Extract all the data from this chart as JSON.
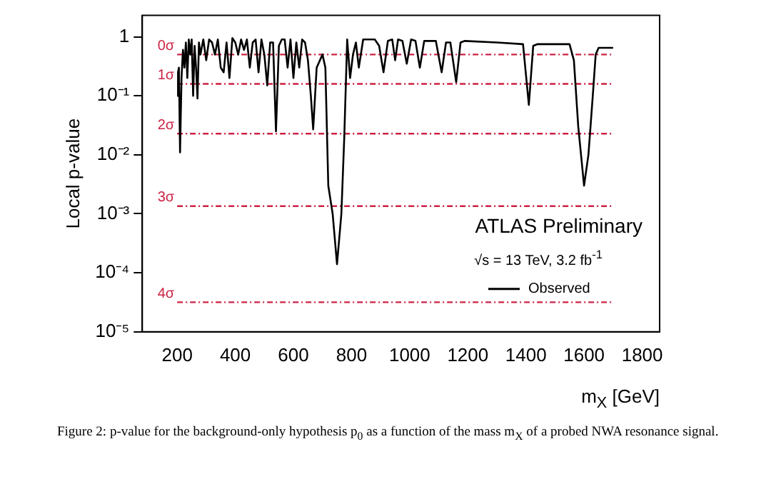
{
  "chart_data": {
    "type": "line",
    "ylabel": "Local p-value",
    "xlabel": "m$_{X}$ [GeV]",
    "annotations": [
      "ATLAS Preliminary",
      "√s = 13 TeV, 3.2 fb$^{-1}$",
      "Figure 2: p-value for the background-only hypothesis p$_{0}$ as a function of the mass m$_{X}$ of a probed NWA resonance signal."
    ],
    "x": [
      200,
      203,
      206,
      210,
      215,
      220,
      225,
      230,
      235,
      240,
      245,
      250,
      255,
      260,
      265,
      270,
      275,
      280,
      290,
      300,
      310,
      320,
      330,
      340,
      350,
      360,
      370,
      380,
      390,
      400,
      410,
      420,
      430,
      440,
      450,
      460,
      470,
      480,
      490,
      500,
      510,
      520,
      530,
      540,
      550,
      560,
      570,
      580,
      590,
      600,
      610,
      620,
      630,
      640,
      650,
      660,
      668,
      680,
      700,
      710,
      720,
      735,
      750,
      765,
      775,
      785,
      795,
      805,
      815,
      825,
      840,
      860,
      880,
      895,
      910,
      925,
      940,
      950,
      960,
      975,
      990,
      1005,
      1020,
      1035,
      1050,
      1070,
      1090,
      1110,
      1125,
      1140,
      1160,
      1175,
      1190,
      1300,
      1390,
      1410,
      1425,
      1440,
      1550,
      1565,
      1580,
      1600,
      1615,
      1630,
      1640,
      1650,
      1700
    ],
    "series": [
      {
        "name": "Observed",
        "color": "#000000",
        "values": [
          0.1,
          0.25,
          0.3,
          0.011,
          0.2,
          0.6,
          0.3,
          0.8,
          0.2,
          0.9,
          0.5,
          0.9,
          0.1,
          0.7,
          0.3,
          0.09,
          0.8,
          0.5,
          0.9,
          0.4,
          0.9,
          0.8,
          0.5,
          0.9,
          0.3,
          0.25,
          0.8,
          0.2,
          0.95,
          0.8,
          0.5,
          0.9,
          0.6,
          0.9,
          0.3,
          0.8,
          0.9,
          0.25,
          0.9,
          0.5,
          0.15,
          0.8,
          0.8,
          0.025,
          0.7,
          0.9,
          0.9,
          0.3,
          0.9,
          0.2,
          0.8,
          0.3,
          0.9,
          0.8,
          0.4,
          0.1,
          0.027,
          0.3,
          0.5,
          0.3,
          0.003,
          0.001,
          0.00014,
          0.001,
          0.02,
          0.9,
          0.2,
          0.5,
          0.8,
          0.3,
          0.9,
          0.9,
          0.9,
          0.7,
          0.25,
          0.85,
          0.9,
          0.4,
          0.9,
          0.85,
          0.35,
          0.9,
          0.85,
          0.3,
          0.85,
          0.85,
          0.85,
          0.25,
          0.8,
          0.8,
          0.17,
          0.8,
          0.85,
          0.8,
          0.75,
          0.07,
          0.7,
          0.75,
          0.75,
          0.4,
          0.03,
          0.003,
          0.01,
          0.1,
          0.5,
          0.65,
          0.65
        ]
      }
    ],
    "xlim": [
      80,
      1860
    ],
    "xticks": [
      200,
      400,
      600,
      800,
      1000,
      1200,
      1400,
      1600,
      1800
    ],
    "ylim": [
      1e-05,
      2.3
    ],
    "log": "y",
    "yticks": [
      {
        "value": 1e-05,
        "label": "10⁻⁵"
      },
      {
        "value": 0.0001,
        "label": "10⁻⁴"
      },
      {
        "value": 0.001,
        "label": "10⁻³"
      },
      {
        "value": 0.01,
        "label": "10⁻²"
      },
      {
        "value": 0.1,
        "label": "10⁻¹"
      },
      1
    ],
    "ref_lines": [
      {
        "axis": "y",
        "value": 0.5,
        "label": "0σ",
        "color": "#cc2244",
        "line_style": "dotted"
      },
      {
        "axis": "y",
        "value": 0.159,
        "label": "1σ",
        "color": "#cc2244",
        "line_style": "dotted"
      },
      {
        "axis": "y",
        "value": 0.0228,
        "label": "2σ",
        "color": "#cc2244",
        "line_style": "dotted"
      },
      {
        "axis": "y",
        "value": 0.00135,
        "label": "3σ",
        "color": "#cc2244",
        "line_style": "dotted"
      },
      {
        "axis": "y",
        "value": 3.17e-05,
        "label": "4σ",
        "color": "#cc2244",
        "line_style": "dotted"
      }
    ],
    "legend": "bottom right",
    "grid": false,
    "marker": "none",
    "line_style": "solid"
  }
}
